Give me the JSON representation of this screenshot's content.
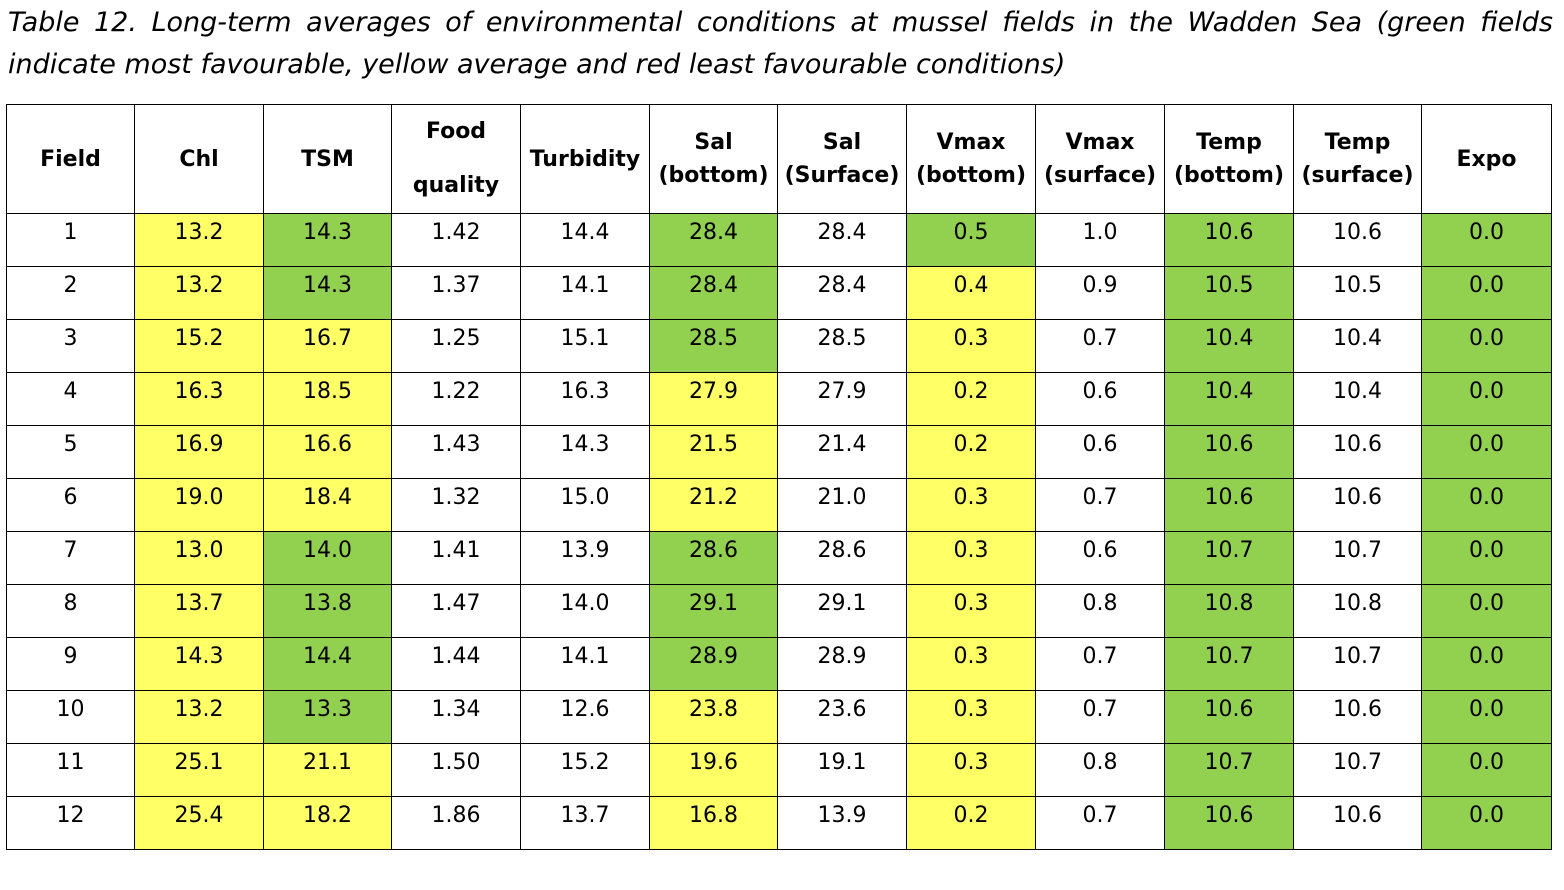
{
  "caption": "Table 12. Long-term averages of environmental conditions at mussel fields in the Wadden Sea (green fields indicate most favourable, yellow average and red least favourable conditions)",
  "colors": {
    "green": "#92d050",
    "yellow": "#ffff66",
    "red": "#ff5050"
  },
  "headers": [
    [
      "Field"
    ],
    [
      "Chl"
    ],
    [
      "TSM"
    ],
    [
      "Food",
      "quality"
    ],
    [
      "Turbidity"
    ],
    [
      "Sal",
      "(bottom)"
    ],
    [
      "Sal",
      "(Surface)"
    ],
    [
      "Vmax",
      "(bottom)"
    ],
    [
      "Vmax",
      "(surface)"
    ],
    [
      "Temp",
      "(bottom)"
    ],
    [
      "Temp",
      "(surface)"
    ],
    [
      "Expo"
    ]
  ],
  "rows": [
    {
      "cells": [
        "1",
        "13.2",
        "14.3",
        "1.42",
        "14.4",
        "28.4",
        "28.4",
        "0.5",
        "1.0",
        "10.6",
        "10.6",
        "0.0"
      ],
      "shade": [
        "",
        "y",
        "g",
        "",
        "",
        "g",
        "",
        "g",
        "",
        "g",
        "",
        "g"
      ]
    },
    {
      "cells": [
        "2",
        "13.2",
        "14.3",
        "1.37",
        "14.1",
        "28.4",
        "28.4",
        "0.4",
        "0.9",
        "10.5",
        "10.5",
        "0.0"
      ],
      "shade": [
        "",
        "y",
        "g",
        "",
        "",
        "g",
        "",
        "y",
        "",
        "g",
        "",
        "g"
      ]
    },
    {
      "cells": [
        "3",
        "15.2",
        "16.7",
        "1.25",
        "15.1",
        "28.5",
        "28.5",
        "0.3",
        "0.7",
        "10.4",
        "10.4",
        "0.0"
      ],
      "shade": [
        "",
        "y",
        "y",
        "",
        "",
        "g",
        "",
        "y",
        "",
        "g",
        "",
        "g"
      ]
    },
    {
      "cells": [
        "4",
        "16.3",
        "18.5",
        "1.22",
        "16.3",
        "27.9",
        "27.9",
        "0.2",
        "0.6",
        "10.4",
        "10.4",
        "0.0"
      ],
      "shade": [
        "",
        "y",
        "y",
        "",
        "",
        "y",
        "",
        "y",
        "",
        "g",
        "",
        "g"
      ]
    },
    {
      "cells": [
        "5",
        "16.9",
        "16.6",
        "1.43",
        "14.3",
        "21.5",
        "21.4",
        "0.2",
        "0.6",
        "10.6",
        "10.6",
        "0.0"
      ],
      "shade": [
        "",
        "y",
        "y",
        "",
        "",
        "y",
        "",
        "y",
        "",
        "g",
        "",
        "g"
      ]
    },
    {
      "cells": [
        "6",
        "19.0",
        "18.4",
        "1.32",
        "15.0",
        "21.2",
        "21.0",
        "0.3",
        "0.7",
        "10.6",
        "10.6",
        "0.0"
      ],
      "shade": [
        "",
        "y",
        "y",
        "",
        "",
        "y",
        "",
        "y",
        "",
        "g",
        "",
        "g"
      ]
    },
    {
      "cells": [
        "7",
        "13.0",
        "14.0",
        "1.41",
        "13.9",
        "28.6",
        "28.6",
        "0.3",
        "0.6",
        "10.7",
        "10.7",
        "0.0"
      ],
      "shade": [
        "",
        "y",
        "g",
        "",
        "",
        "g",
        "",
        "y",
        "",
        "g",
        "",
        "g"
      ]
    },
    {
      "cells": [
        "8",
        "13.7",
        "13.8",
        "1.47",
        "14.0",
        "29.1",
        "29.1",
        "0.3",
        "0.8",
        "10.8",
        "10.8",
        "0.0"
      ],
      "shade": [
        "",
        "y",
        "g",
        "",
        "",
        "g",
        "",
        "y",
        "",
        "g",
        "",
        "g"
      ]
    },
    {
      "cells": [
        "9",
        "14.3",
        "14.4",
        "1.44",
        "14.1",
        "28.9",
        "28.9",
        "0.3",
        "0.7",
        "10.7",
        "10.7",
        "0.0"
      ],
      "shade": [
        "",
        "y",
        "g",
        "",
        "",
        "g",
        "",
        "y",
        "",
        "g",
        "",
        "g"
      ]
    },
    {
      "cells": [
        "10",
        "13.2",
        "13.3",
        "1.34",
        "12.6",
        "23.8",
        "23.6",
        "0.3",
        "0.7",
        "10.6",
        "10.6",
        "0.0"
      ],
      "shade": [
        "",
        "y",
        "g",
        "",
        "",
        "y",
        "",
        "y",
        "",
        "g",
        "",
        "g"
      ]
    },
    {
      "cells": [
        "11",
        "25.1",
        "21.1",
        "1.50",
        "15.2",
        "19.6",
        "19.1",
        "0.3",
        "0.8",
        "10.7",
        "10.7",
        "0.0"
      ],
      "shade": [
        "",
        "y",
        "y",
        "",
        "",
        "y",
        "",
        "y",
        "",
        "g",
        "",
        "g"
      ]
    },
    {
      "cells": [
        "12",
        "25.4",
        "18.2",
        "1.86",
        "13.7",
        "16.8",
        "13.9",
        "0.2",
        "0.7",
        "10.6",
        "10.6",
        "0.0"
      ],
      "shade": [
        "",
        "y",
        "y",
        "",
        "",
        "y",
        "",
        "y",
        "",
        "g",
        "",
        "g"
      ]
    }
  ]
}
